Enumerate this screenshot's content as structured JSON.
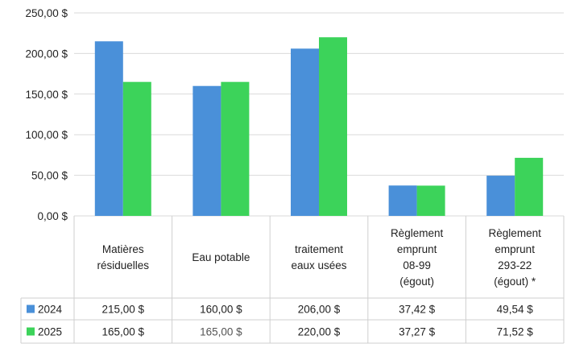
{
  "chart_data": {
    "type": "bar",
    "categories": [
      [
        "Matières",
        "résiduelles"
      ],
      [
        "Eau potable"
      ],
      [
        "traitement",
        "eaux usées"
      ],
      [
        "Règlement",
        "emprunt",
        "08-99",
        "(égout)"
      ],
      [
        "Règlement",
        "emprunt",
        "293-22",
        "(égout) *"
      ]
    ],
    "series": [
      {
        "name": "2024",
        "color": "#4a90d9",
        "values": [
          215.0,
          160.0,
          206.0,
          37.42,
          49.54
        ],
        "labels": [
          "215,00 $",
          "160,00 $",
          "206,00 $",
          "37,42 $",
          "49,54 $"
        ]
      },
      {
        "name": "2025",
        "color": "#3cd35a",
        "values": [
          165.0,
          165.0,
          220.0,
          37.27,
          71.52
        ],
        "labels": [
          "165,00 $",
          "165,00 $",
          "220,00 $",
          "37,27 $",
          "71,52 $"
        ]
      }
    ],
    "y_ticks": [
      {
        "value": 0,
        "label": "0,00 $"
      },
      {
        "value": 50,
        "label": "50,00 $"
      },
      {
        "value": 100,
        "label": "100,00 $"
      },
      {
        "value": 150,
        "label": "150,00 $"
      },
      {
        "value": 200,
        "label": "200,00 $"
      },
      {
        "value": 250,
        "label": "250,00 $"
      }
    ],
    "ylim": [
      0,
      250
    ],
    "grid": true,
    "legend": "data-table"
  }
}
